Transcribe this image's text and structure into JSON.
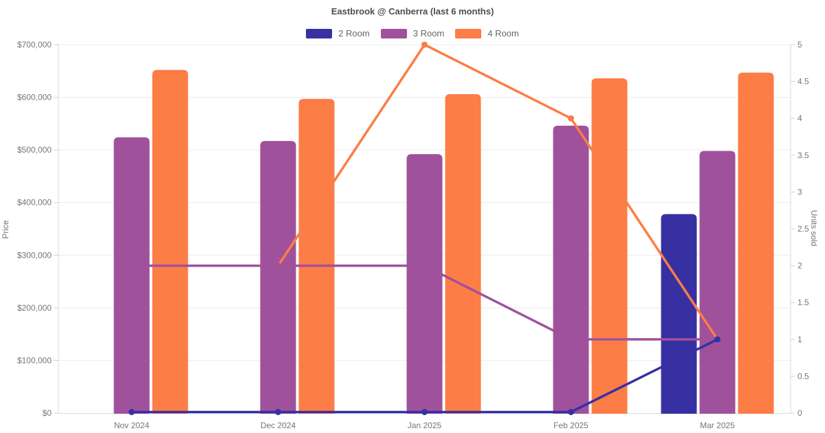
{
  "chart_data": {
    "type": "combo-bar-line",
    "title": "Eastbrook @ Canberra (last 6 months)",
    "categories": [
      "Nov 2024",
      "Dec 2024",
      "Jan 2025",
      "Feb 2025",
      "Mar 2025"
    ],
    "legend": [
      "2 Room",
      "3 Room",
      "4 Room"
    ],
    "colors": {
      "2 Room": "#3730a3",
      "3 Room": "#a0519b",
      "4 Room": "#fc7d45"
    },
    "bar_series": [
      {
        "name": "2 Room",
        "axis": "left",
        "values": [
          null,
          null,
          null,
          null,
          378000
        ]
      },
      {
        "name": "3 Room",
        "axis": "left",
        "values": [
          524000,
          517000,
          492000,
          546000,
          498000
        ]
      },
      {
        "name": "4 Room",
        "axis": "left",
        "values": [
          652000,
          597000,
          606000,
          636000,
          647000
        ]
      }
    ],
    "line_series": [
      {
        "name": "4 Room",
        "axis": "right",
        "values": [
          null,
          2,
          5,
          4,
          1
        ]
      },
      {
        "name": "3 Room",
        "axis": "right",
        "values": [
          2,
          2,
          2,
          1,
          1
        ]
      },
      {
        "name": "2 Room",
        "axis": "right",
        "values": [
          0,
          0,
          0,
          0,
          1
        ]
      }
    ],
    "left_axis": {
      "label": "Price",
      "min": 0,
      "max": 700000,
      "step": 100000,
      "format": "currency",
      "tick_labels": [
        "$0",
        "$100,000",
        "$200,000",
        "$300,000",
        "$400,000",
        "$500,000",
        "$600,000",
        "$700,000"
      ]
    },
    "right_axis": {
      "label": "Units sold",
      "min": 0,
      "max": 5,
      "step": 0.5,
      "tick_labels": [
        "0",
        "0.5",
        "1",
        "1.5",
        "2",
        "2.5",
        "3",
        "3.5",
        "4",
        "4.5",
        "5"
      ]
    },
    "grid": true,
    "legend_position": "top",
    "style": {
      "grid_color": "#ececec",
      "axis_line_color": "#d9d9d9",
      "tick_color": "#cccccc",
      "tick_text_color": "#757575",
      "title_color": "#4d4d4d",
      "legend_text_color": "#666666",
      "background": "#ffffff"
    }
  }
}
